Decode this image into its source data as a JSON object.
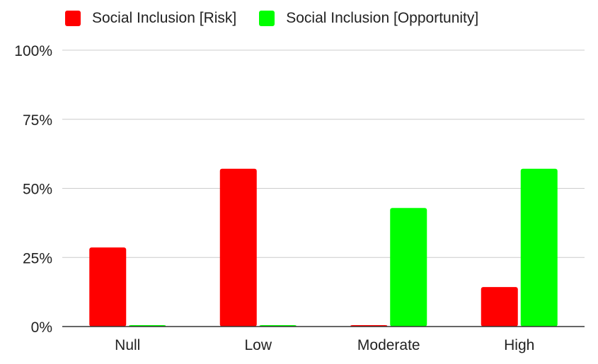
{
  "chart_data": {
    "type": "bar",
    "categories": [
      "Null",
      "Low",
      "Moderate",
      "High"
    ],
    "series": [
      {
        "name": "Social Inclusion [Risk]",
        "color": "#ff0000",
        "values": [
          28.6,
          57.1,
          0,
          14.3
        ]
      },
      {
        "name": "Social Inclusion [Opportunity]",
        "color": "#00ff00",
        "values": [
          0,
          0,
          42.9,
          57.1
        ]
      }
    ],
    "ylim": [
      0,
      100
    ],
    "yticks": [
      "0%",
      "25%",
      "50%",
      "75%",
      "100%"
    ],
    "ytick_values": [
      0,
      25,
      50,
      75,
      100
    ],
    "grid": true,
    "legend_position": "top"
  }
}
